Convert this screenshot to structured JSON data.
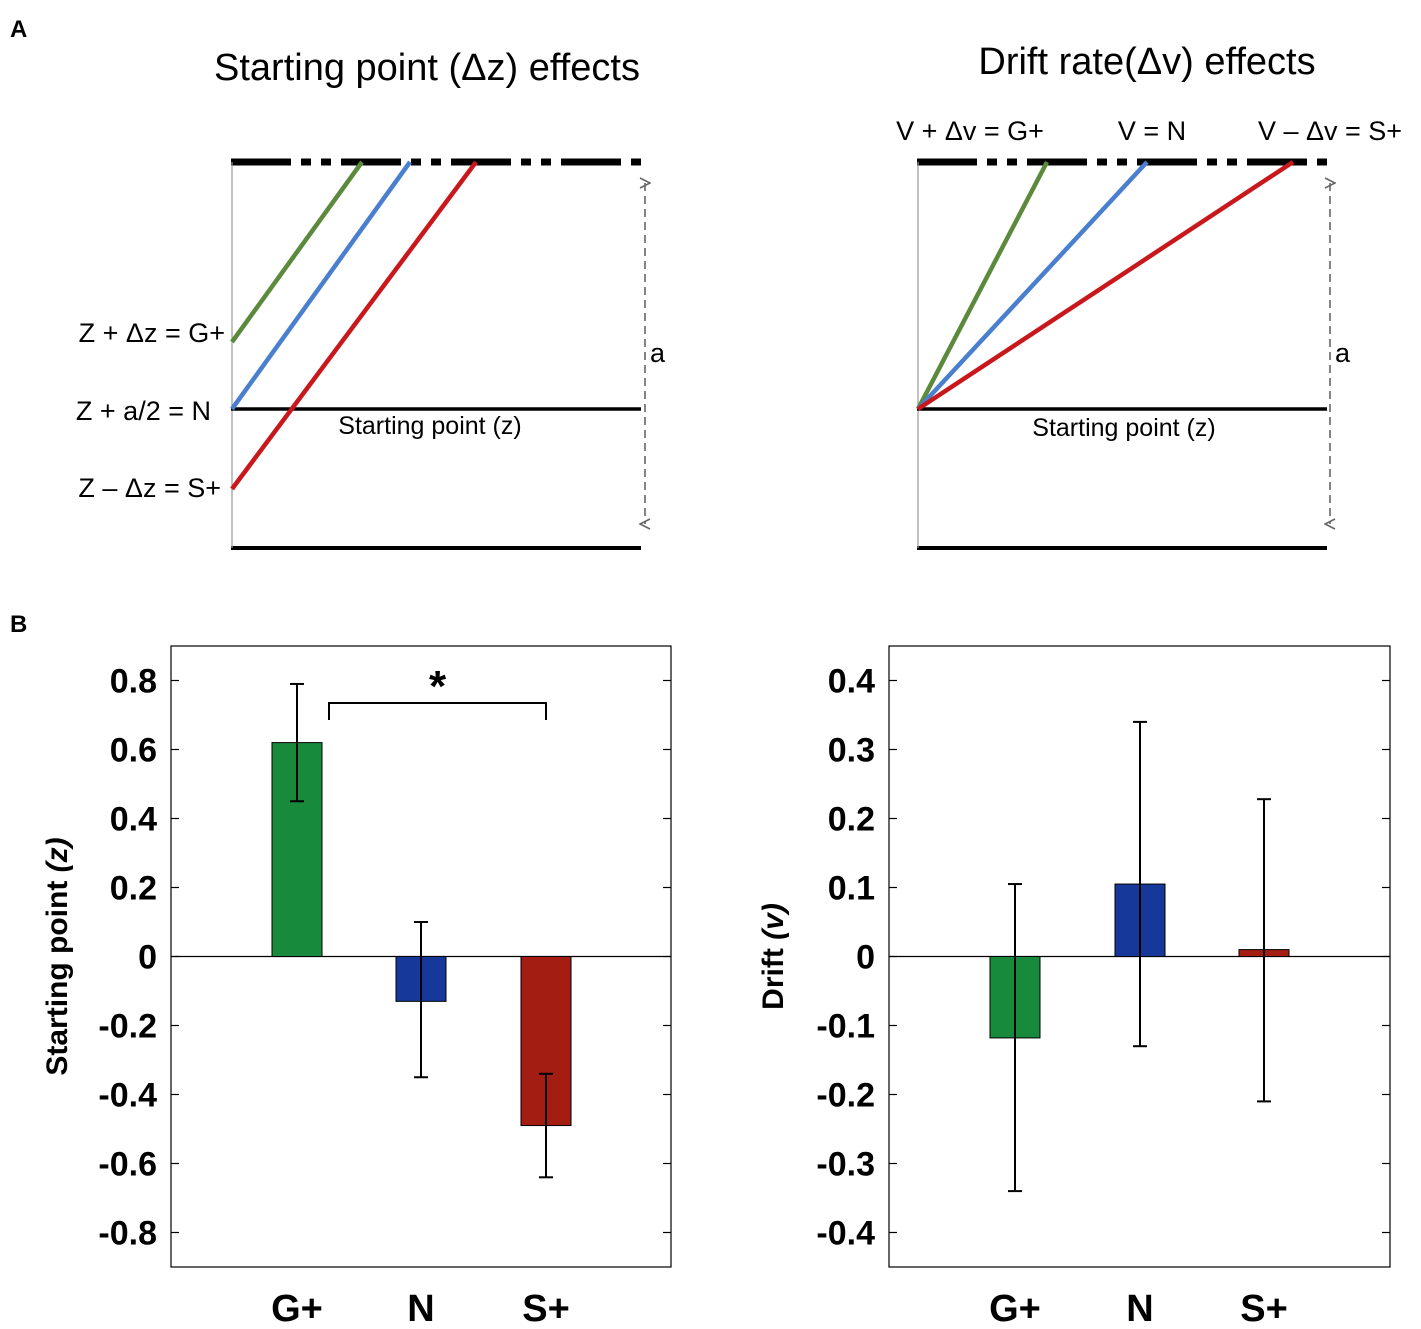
{
  "panels": {
    "a": "A",
    "b": "B"
  },
  "diagram_left": {
    "title": "Starting point (Δz) effects",
    "labels": {
      "g": "Z + Δz = G+",
      "n": "Z + a/2 = N",
      "s": "Z – Δz = S+"
    },
    "baseline_label": "Starting point (z)",
    "boundary_label": "a"
  },
  "diagram_right": {
    "title": "Drift rate(Δv) effects",
    "labels": {
      "g": "V + Δv = G+",
      "n": "V = N",
      "s": "V – Δv = S+"
    },
    "baseline_label": "Starting point (z)",
    "boundary_label": "a"
  },
  "colors": {
    "g_line": "#5b8a3c",
    "n_line": "#4a7fcf",
    "s_line": "#c8181c",
    "g_bar": "#178a3c",
    "n_bar": "#16389a",
    "s_bar": "#a31d12"
  },
  "chart_data": [
    {
      "type": "bar",
      "categories": [
        "G+",
        "N",
        "S+"
      ],
      "values": [
        0.62,
        -0.13,
        -0.49
      ],
      "errors_upper": [
        0.79,
        0.1,
        -0.34
      ],
      "errors_lower": [
        0.45,
        -0.35,
        -0.64
      ],
      "ylabel_main": "Starting point ",
      "ylabel_symbol": "(z)",
      "ylim": [
        -0.9,
        0.9
      ],
      "yticks": [
        "0.8",
        "0.6",
        "0.4",
        "0.2",
        "0",
        "-0.2",
        "-0.4",
        "-0.6",
        "-0.8"
      ],
      "ytick_values": [
        0.8,
        0.6,
        0.4,
        0.2,
        0,
        -0.2,
        -0.4,
        -0.6,
        -0.8
      ],
      "significance": {
        "from": "G+",
        "to": "S+",
        "label": "*"
      }
    },
    {
      "type": "bar",
      "categories": [
        "G+",
        "N",
        "S+"
      ],
      "values": [
        -0.118,
        0.105,
        0.01
      ],
      "errors_upper": [
        0.105,
        0.34,
        0.228
      ],
      "errors_lower": [
        -0.34,
        -0.13,
        -0.21
      ],
      "ylabel_main": "Drift ",
      "ylabel_symbol": "(v)",
      "ylim": [
        -0.45,
        0.45
      ],
      "yticks": [
        "0.4",
        "0.3",
        "0.2",
        "0.1",
        "0",
        "-0.1",
        "-0.2",
        "-0.3",
        "-0.4"
      ],
      "ytick_values": [
        0.4,
        0.3,
        0.2,
        0.1,
        0,
        -0.1,
        -0.2,
        -0.3,
        -0.4
      ]
    }
  ]
}
